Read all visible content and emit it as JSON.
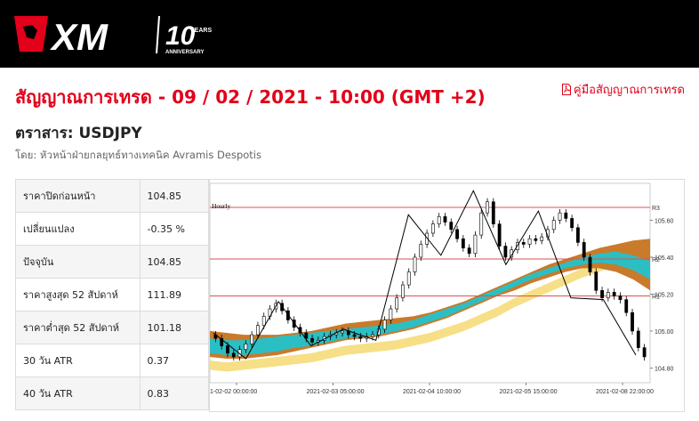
{
  "brand": {
    "logo_text": "XM",
    "anniversary_number": "10",
    "anniversary_years": "YEARS",
    "anniversary_label": "ANNIVERSARY",
    "colors": {
      "accent": "#e2001a",
      "header_bg": "#000000"
    }
  },
  "page": {
    "title": "สัญญาณการเทรด - 09 / 02 / 2021 - 10:00 (GMT +2)",
    "guide_link": "คู่มือสัญญาณการเทรด",
    "guide_icon": "pdf-icon",
    "instrument": "ตราสาร: USDJPY",
    "author": "โดย: หัวหน้าฝ่ายกลยุทธ์ทางเทคนิค Avramis Despotis"
  },
  "stats": [
    {
      "label": "ราคาปิดก่อนหน้า",
      "value": "104.85"
    },
    {
      "label": "เปลี่ยนแปลง",
      "value": "-0.35 %"
    },
    {
      "label": "ปัจจุบัน",
      "value": "104.85"
    },
    {
      "label": "ราคาสูงสุด 52 สัปดาห์",
      "value": "111.89"
    },
    {
      "label": "ราคาต่ำสุด 52 สัปดาห์",
      "value": "101.18"
    },
    {
      "label": "30 วัน ATR",
      "value": "0.37"
    },
    {
      "label": "40 วัน ATR",
      "value": "0.83"
    }
  ],
  "chart_data": {
    "type": "candlestick",
    "timeframe": "Hourly",
    "x_ticks": [
      "1-02-02 00:00:00",
      "2021-02-03 05:00:00",
      "2021-02-04 10:00:00",
      "2021-02-05 15:00:00",
      "2021-02-08 22:00:00"
    ],
    "y_ticks": [
      "105.60",
      "105.40",
      "105.20",
      "105.00",
      "104.80"
    ],
    "ylim": [
      104.72,
      105.8
    ],
    "levels": [
      {
        "name": "R3",
        "value": 105.67
      },
      {
        "name": "R2",
        "value": 105.39
      },
      {
        "name": "R1",
        "value": 105.19
      }
    ],
    "zigzag": [
      104.99,
      104.85,
      105.16,
      104.92,
      105.01,
      104.95,
      105.63,
      105.41,
      105.76,
      105.36,
      105.65,
      105.18,
      105.17,
      104.87
    ],
    "close": [
      104.96,
      104.92,
      104.88,
      104.86,
      104.9,
      104.93,
      104.98,
      105.03,
      105.08,
      105.12,
      105.15,
      105.11,
      105.06,
      105.02,
      104.99,
      104.96,
      104.94,
      104.95,
      104.97,
      104.98,
      104.99,
      105.0,
      104.98,
      104.97,
      104.96,
      104.97,
      104.98,
      105.01,
      105.06,
      105.12,
      105.18,
      105.25,
      105.32,
      105.4,
      105.47,
      105.53,
      105.58,
      105.62,
      105.59,
      105.55,
      105.5,
      105.45,
      105.42,
      105.52,
      105.64,
      105.7,
      105.58,
      105.46,
      105.4,
      105.44,
      105.48,
      105.47,
      105.5,
      105.49,
      105.51,
      105.55,
      105.6,
      105.64,
      105.61,
      105.56,
      105.48,
      105.4,
      105.32,
      105.22,
      105.18,
      105.21,
      105.19,
      105.17,
      105.1,
      105.0,
      104.91,
      104.86
    ],
    "series": [
      {
        "name": "orange-band",
        "color": "#c97a2b"
      },
      {
        "name": "teal-band",
        "color": "#2bbfc4"
      },
      {
        "name": "yellow-band",
        "color": "#f5dc7a"
      }
    ],
    "bands": {
      "orange": {
        "upper": [
          105.0,
          104.99,
          104.98,
          104.98,
          104.98,
          104.99,
          105.0,
          105.02,
          105.04,
          105.05,
          105.06,
          105.07,
          105.08,
          105.1,
          105.13,
          105.16,
          105.2,
          105.24,
          105.28,
          105.32,
          105.36,
          105.39,
          105.42,
          105.45,
          105.47,
          105.49,
          105.5
        ],
        "lower": [
          104.86,
          104.85,
          104.85,
          104.86,
          104.87,
          104.89,
          104.91,
          104.93,
          104.95,
          104.96,
          104.97,
          104.99,
          105.01,
          105.04,
          105.07,
          105.11,
          105.15,
          105.19,
          105.22,
          105.26,
          105.29,
          105.32,
          105.34,
          105.34,
          105.32,
          105.28,
          105.22
        ]
      },
      "teal": {
        "upper": [
          104.96,
          104.95,
          104.95,
          104.96,
          104.97,
          104.98,
          104.99,
          105.0,
          105.01,
          105.02,
          105.03,
          105.04,
          105.06,
          105.09,
          105.12,
          105.15,
          105.19,
          105.23,
          105.27,
          105.31,
          105.34,
          105.37,
          105.4,
          105.42,
          105.43,
          105.41,
          105.38
        ],
        "lower": [
          104.88,
          104.87,
          104.87,
          104.88,
          104.89,
          104.91,
          104.92,
          104.94,
          104.96,
          104.97,
          104.98,
          105.0,
          105.02,
          105.05,
          105.08,
          105.12,
          105.16,
          105.2,
          105.24,
          105.28,
          105.31,
          105.34,
          105.36,
          105.37,
          105.36,
          105.33,
          105.28
        ]
      },
      "yellow": {
        "upper": [
          104.84,
          104.83,
          104.84,
          104.85,
          104.86,
          104.87,
          104.88,
          104.9,
          104.92,
          104.93,
          104.94,
          104.95,
          104.97,
          104.99,
          105.02,
          105.05,
          105.09,
          105.13,
          105.18,
          105.22,
          105.26,
          105.3,
          105.34,
          105.38,
          105.42,
          105.45,
          105.48
        ],
        "lower": [
          104.79,
          104.78,
          104.79,
          104.8,
          104.81,
          104.82,
          104.83,
          104.85,
          104.87,
          104.88,
          104.89,
          104.9,
          104.92,
          104.94,
          104.97,
          105.0,
          105.04,
          105.08,
          105.13,
          105.17,
          105.21,
          105.25,
          105.29,
          105.32,
          105.36,
          105.39,
          105.41
        ]
      }
    },
    "colors": {
      "level_line": "#d9534f",
      "zigzag": "#000000",
      "candle_up": "#ffffff",
      "candle_down": "#000000"
    }
  }
}
